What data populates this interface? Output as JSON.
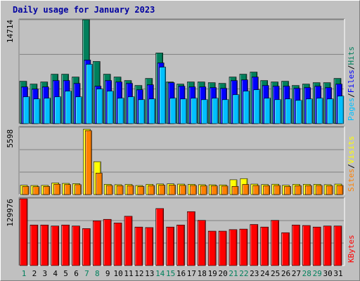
{
  "chart_data": [
    {
      "type": "bar",
      "panel": "hits-files-pages",
      "title": "Daily usage for January 2023",
      "y_max_label": "14714",
      "ylim": [
        0,
        14714
      ],
      "categories": [
        "1",
        "2",
        "3",
        "4",
        "5",
        "6",
        "7",
        "8",
        "9",
        "10",
        "11",
        "12",
        "13",
        "14",
        "15",
        "16",
        "17",
        "18",
        "19",
        "20",
        "21",
        "22",
        "23",
        "24",
        "25",
        "26",
        "27",
        "28",
        "29",
        "30",
        "31"
      ],
      "legend": [
        {
          "text": "Pages",
          "color": "#00c0ff"
        },
        {
          "text": "/",
          "color": "#000000"
        },
        {
          "text": "Files",
          "color": "#0000ff"
        },
        {
          "text": "/",
          "color": "#000000"
        },
        {
          "text": "Hits",
          "color": "#00805c"
        }
      ],
      "series": [
        {
          "name": "Hits",
          "color": "#00805c",
          "values": [
            6000,
            5600,
            5900,
            7000,
            7000,
            6600,
            14714,
            8800,
            7000,
            6600,
            6100,
            5400,
            6400,
            10000,
            5900,
            5600,
            5900,
            5900,
            5800,
            5700,
            6600,
            7000,
            7300,
            6100,
            5900,
            6000,
            5400,
            5600,
            5800,
            5800,
            6400
          ]
        },
        {
          "name": "Files",
          "color": "#0000ff",
          "values": [
            5200,
            4900,
            5200,
            6100,
            6100,
            5700,
            9000,
            5300,
            6100,
            5900,
            5700,
            4800,
            5500,
            8600,
            5800,
            5300,
            5200,
            5200,
            5100,
            5000,
            6100,
            6200,
            6600,
            5400,
            5300,
            5300,
            5000,
            5100,
            5300,
            5100,
            5600
          ]
        },
        {
          "name": "Pages",
          "color": "#00c0ff",
          "values": [
            3800,
            3500,
            3600,
            3800,
            4600,
            3800,
            8400,
            4900,
            4600,
            3600,
            3800,
            3400,
            3500,
            8000,
            3600,
            3500,
            3600,
            3400,
            3600,
            3400,
            4100,
            4600,
            4800,
            3600,
            3400,
            3500,
            3300,
            3500,
            3600,
            3500,
            3900
          ]
        }
      ]
    },
    {
      "type": "bar",
      "panel": "visits-sites",
      "y_max_label": "5598",
      "ylim": [
        0,
        5598
      ],
      "categories": [
        "1",
        "2",
        "3",
        "4",
        "5",
        "6",
        "7",
        "8",
        "9",
        "10",
        "11",
        "12",
        "13",
        "14",
        "15",
        "16",
        "17",
        "18",
        "19",
        "20",
        "21",
        "22",
        "23",
        "24",
        "25",
        "26",
        "27",
        "28",
        "29",
        "30",
        "31"
      ],
      "legend": [
        {
          "text": "Sites",
          "color": "#ff8000"
        },
        {
          "text": "/",
          "color": "#000000"
        },
        {
          "text": "Visits",
          "color": "#ffff00"
        }
      ],
      "series": [
        {
          "name": "Visits",
          "color": "#ffff00",
          "values": [
            800,
            780,
            790,
            1000,
            960,
            940,
            5598,
            2820,
            880,
            850,
            870,
            780,
            880,
            910,
            920,
            900,
            880,
            850,
            840,
            830,
            1270,
            1370,
            900,
            860,
            890,
            800,
            880,
            880,
            880,
            850,
            900
          ]
        },
        {
          "name": "Sites",
          "color": "#ff8000",
          "values": [
            700,
            680,
            700,
            890,
            860,
            850,
            5480,
            1840,
            780,
            760,
            770,
            700,
            770,
            810,
            810,
            790,
            780,
            750,
            740,
            730,
            700,
            870,
            780,
            760,
            780,
            700,
            760,
            770,
            780,
            750,
            780
          ]
        }
      ]
    },
    {
      "type": "bar",
      "panel": "kbytes",
      "y_max_label": "129976",
      "ylim": [
        0,
        129976
      ],
      "categories": [
        "1",
        "2",
        "3",
        "4",
        "5",
        "6",
        "7",
        "8",
        "9",
        "10",
        "11",
        "12",
        "13",
        "14",
        "15",
        "16",
        "17",
        "18",
        "19",
        "20",
        "21",
        "22",
        "23",
        "24",
        "25",
        "26",
        "27",
        "28",
        "29",
        "30",
        "31"
      ],
      "legend": [
        {
          "text": "KBytes",
          "color": "#ff0000"
        }
      ],
      "series": [
        {
          "name": "KBytes",
          "color": "#ff0000",
          "values": [
            129976,
            79000,
            79000,
            77000,
            79000,
            77000,
            72000,
            87000,
            90000,
            83000,
            96000,
            75000,
            74000,
            111000,
            75000,
            79000,
            105000,
            88000,
            67000,
            67000,
            70000,
            71000,
            80000,
            75000,
            88000,
            64000,
            79000,
            78000,
            75000,
            77000,
            77000
          ]
        }
      ]
    }
  ],
  "weekend_days": [
    "1",
    "7",
    "8",
    "14",
    "15",
    "21",
    "22",
    "28",
    "29"
  ],
  "colors": {
    "weekday_label": "#000000",
    "weekend_label": "#00805c"
  }
}
